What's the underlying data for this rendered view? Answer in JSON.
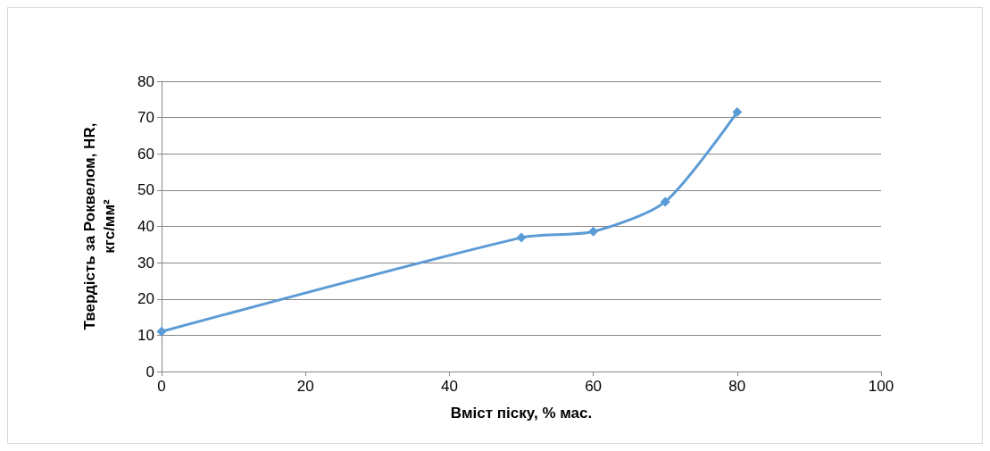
{
  "chart_data": {
    "type": "line",
    "xlabel": "Вміст піску, % мас.",
    "ylabel": "Твердість за Роквелом, HR, кгс/мм²",
    "x": [
      0,
      50,
      60,
      70,
      80
    ],
    "series": [
      {
        "color": "#5b9bd5",
        "values": [
          11,
          36.9,
          38.6,
          46.8,
          71.5
        ]
      }
    ],
    "xlim": [
      0,
      100
    ],
    "xticks": [
      0,
      20,
      40,
      60,
      80,
      100
    ],
    "ylim": [
      0,
      80
    ],
    "yticks": [
      0,
      10,
      20,
      30,
      40,
      50,
      60,
      70,
      80
    ],
    "grid": "y",
    "marker": "diamond",
    "line_style": "solid"
  }
}
